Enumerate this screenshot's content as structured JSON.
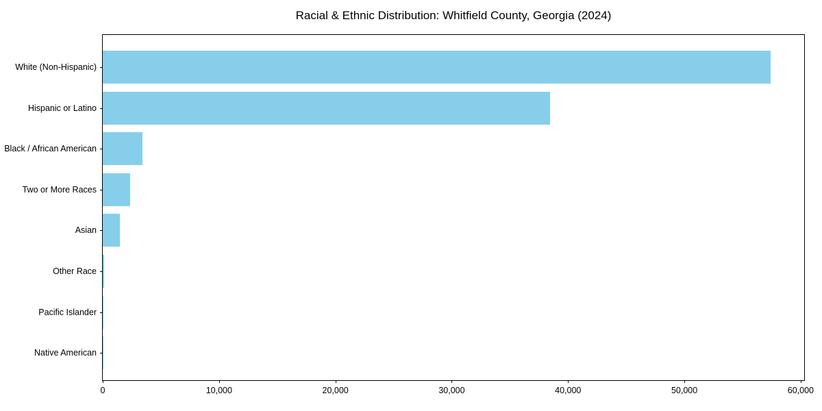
{
  "chart_data": {
    "type": "bar",
    "orientation": "horizontal",
    "title": "Racial & Ethnic Distribution: Whitfield County, Georgia (2024)",
    "xlabel": "",
    "ylabel": "",
    "categories": [
      "White (Non-Hispanic)",
      "Hispanic or Latino",
      "Black / African American",
      "Two or More Races",
      "Asian",
      "Other Race",
      "Pacific Islander",
      "Native American"
    ],
    "values": [
      57400,
      38450,
      3400,
      2370,
      1470,
      100,
      45,
      25
    ],
    "xlim": [
      0,
      60300
    ],
    "x_ticks": [
      0,
      10000,
      20000,
      30000,
      40000,
      50000,
      60000
    ],
    "x_tick_labels": [
      "0",
      "10,000",
      "20,000",
      "30,000",
      "40,000",
      "50,000",
      "60,000"
    ],
    "bar_color": "#87CEEB",
    "grid": false,
    "legend": null,
    "categories_order": "top-to-bottom"
  }
}
